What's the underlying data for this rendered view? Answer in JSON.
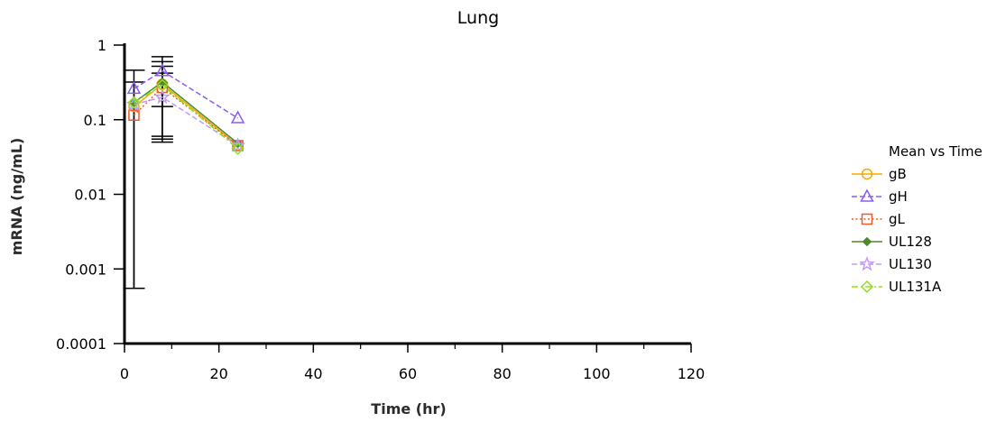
{
  "chart_data": {
    "type": "line",
    "title": "Lung",
    "xlabel": "Time (hr)",
    "ylabel": "mRNA (ng/mL)",
    "xlim": [
      0,
      120
    ],
    "ylim": [
      0.0001,
      1
    ],
    "yscale": "log",
    "grid": false,
    "x_ticks": [
      "0",
      "20",
      "40",
      "60",
      "80",
      "100",
      "120"
    ],
    "y_ticks": [
      "1",
      "0.1",
      "0.01",
      "0.001",
      "0.0001"
    ],
    "legend": {
      "title": "Mean vs Time",
      "placement": "right"
    },
    "series": [
      {
        "name": "gB",
        "color": "#f5a800",
        "marker": "circle",
        "dash": "solid",
        "x": [
          2,
          8,
          24
        ],
        "y": [
          0.15,
          0.3,
          0.045
        ]
      },
      {
        "name": "gH",
        "color": "#8a5cf5",
        "marker": "triangle",
        "dash": "dashed",
        "x": [
          2,
          8,
          24
        ],
        "y": [
          0.26,
          0.45,
          0.105
        ]
      },
      {
        "name": "gL",
        "color": "#f05a24",
        "marker": "square",
        "dash": "dotted",
        "x": [
          2,
          8,
          24
        ],
        "y": [
          0.115,
          0.27,
          0.045
        ]
      },
      {
        "name": "UL128",
        "color": "#4a8a2a",
        "marker": "diamond-small",
        "dash": "solid",
        "x": [
          2,
          8,
          24
        ],
        "y": [
          0.17,
          0.32,
          0.048
        ]
      },
      {
        "name": "UL130",
        "color": "#c39bf5",
        "marker": "star",
        "dash": "dashed",
        "x": [
          2,
          8,
          24
        ],
        "y": [
          0.16,
          0.2,
          0.045
        ]
      },
      {
        "name": "UL131A",
        "color": "#8fe01c",
        "marker": "diamond",
        "dash": "dashdot",
        "x": [
          2,
          8,
          24
        ],
        "y": [
          0.17,
          0.29,
          0.041
        ]
      }
    ],
    "error_bars": [
      {
        "x": 2,
        "low": 0.00055,
        "high": 0.46
      },
      {
        "x": 2,
        "low": 0.00055,
        "high": 0.32
      },
      {
        "x": 8,
        "low": 0.05,
        "high": 0.7
      },
      {
        "x": 8,
        "low": 0.055,
        "high": 0.6
      },
      {
        "x": 8,
        "low": 0.06,
        "high": 0.52
      },
      {
        "x": 8,
        "low": 0.15,
        "high": 0.42
      }
    ]
  }
}
